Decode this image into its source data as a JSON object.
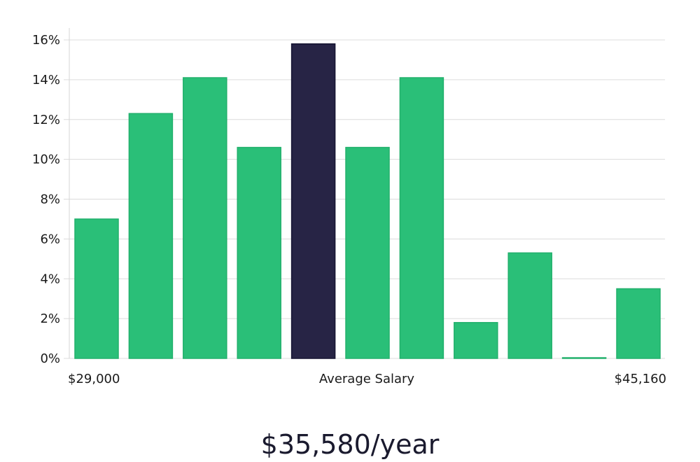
{
  "chart_data": {
    "type": "bar",
    "title": "",
    "xlabel": "Average Salary",
    "ylabel": "",
    "ylim": [
      0,
      16
    ],
    "yticks": [
      "0%",
      "2%",
      "4%",
      "6%",
      "8%",
      "10%",
      "12%",
      "14%",
      "16%"
    ],
    "ytick_values": [
      0,
      2,
      4,
      6,
      8,
      10,
      12,
      14,
      16
    ],
    "x_start_label": "$29,000",
    "x_end_label": "$45,160",
    "values": [
      7.0,
      12.3,
      14.1,
      10.6,
      15.8,
      10.6,
      14.1,
      1.8,
      5.3,
      0.0,
      3.5
    ],
    "highlight_index": 4,
    "grid": true
  },
  "summary": {
    "average_salary": "$35,580/year"
  },
  "colors": {
    "bar": "#2abf78",
    "bar_border": "#22b06c",
    "highlight": "#272445",
    "highlight_border": "#161432"
  }
}
